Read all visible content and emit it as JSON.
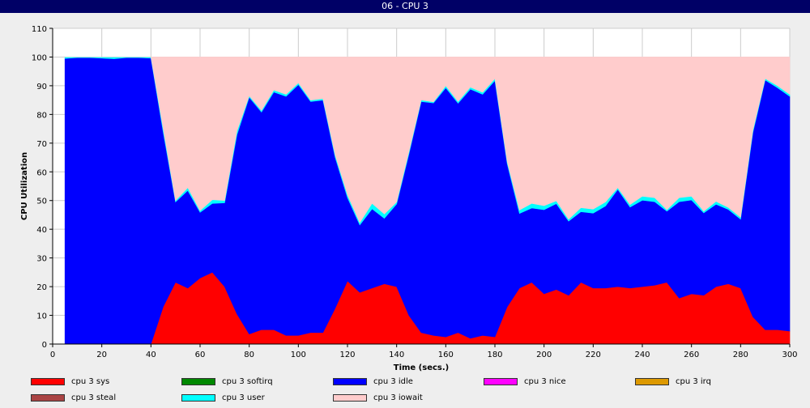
{
  "window": {
    "title": "06 - CPU 3"
  },
  "chart_data": {
    "type": "area",
    "stacked": true,
    "xlabel": "Time (secs.)",
    "ylabel": "CPU Utilization",
    "xlim": [
      0,
      300
    ],
    "ylim": [
      0,
      110
    ],
    "xticks": [
      0,
      20,
      40,
      60,
      80,
      100,
      120,
      140,
      160,
      180,
      200,
      220,
      240,
      260,
      280,
      300
    ],
    "yticks": [
      0,
      10,
      20,
      30,
      40,
      50,
      60,
      70,
      80,
      90,
      100,
      110
    ],
    "grid": true,
    "legend_position": "bottom",
    "x": [
      5,
      10,
      15,
      20,
      25,
      30,
      35,
      40,
      45,
      50,
      55,
      60,
      65,
      70,
      75,
      80,
      85,
      90,
      95,
      100,
      105,
      110,
      115,
      120,
      125,
      130,
      135,
      140,
      145,
      150,
      155,
      160,
      165,
      170,
      175,
      180,
      185,
      190,
      195,
      200,
      205,
      210,
      215,
      220,
      225,
      230,
      235,
      240,
      245,
      250,
      255,
      260,
      265,
      270,
      275,
      280,
      285,
      290,
      295,
      300
    ],
    "series": [
      {
        "name": "cpu 3 sys",
        "color": "#ff0000",
        "values": [
          0,
          0,
          0,
          0,
          0,
          0,
          0,
          0,
          13,
          21.5,
          19.5,
          23,
          25,
          20,
          10.5,
          3.5,
          5,
          5,
          3,
          3,
          4,
          4,
          12.5,
          22,
          18,
          19.5,
          21,
          20,
          10,
          4,
          3,
          2.5,
          4,
          2,
          3,
          2.5,
          13,
          19.5,
          21.5,
          17.5,
          19,
          17,
          21.5,
          19.5,
          19.5,
          20,
          19.5,
          20,
          20.5,
          21.5,
          16,
          17.5,
          17,
          20,
          21,
          19.5,
          9.5,
          5,
          5,
          4.5
        ]
      },
      {
        "name": "cpu 3 softirq",
        "color": "#008800",
        "values": [
          0,
          0,
          0,
          0,
          0,
          0,
          0,
          0,
          0,
          0,
          0,
          0,
          0,
          0,
          0,
          0,
          0,
          0,
          0,
          0,
          0,
          0,
          0,
          0,
          0,
          0,
          0,
          0,
          0,
          0,
          0,
          0,
          0,
          0,
          0,
          0,
          0,
          0,
          0,
          0,
          0,
          0,
          0,
          0,
          0,
          0,
          0,
          0,
          0,
          0,
          0,
          0,
          0,
          0,
          0,
          0,
          0,
          0,
          0,
          0
        ]
      },
      {
        "name": "cpu 3 idle",
        "color": "#0000ff",
        "values": [
          99.5,
          99.8,
          99.8,
          99.6,
          99.4,
          99.8,
          99.8,
          99.6,
          60.8,
          28,
          34,
          22.9,
          24,
          29.2,
          62.4,
          82.5,
          75.8,
          82.8,
          83.3,
          87.4,
          80.5,
          81,
          52.5,
          29,
          23.5,
          27.6,
          22.8,
          28.8,
          56.2,
          80.5,
          81,
          86.8,
          79.9,
          86.8,
          84,
          89.3,
          49.8,
          26,
          25.9,
          29.3,
          29.9,
          25.8,
          24.6,
          26.1,
          28.6,
          33.9,
          28.2,
          30.1,
          29.1,
          24.8,
          33.6,
          32.7,
          28.7,
          28.7,
          25.9,
          24,
          64.2,
          87,
          84.3,
          81.8
        ]
      },
      {
        "name": "cpu 3 nice",
        "color": "#ff00ff",
        "values": [
          0,
          0,
          0,
          0,
          0,
          0,
          0,
          0,
          0,
          0,
          0,
          0,
          0,
          0,
          0,
          0,
          0,
          0,
          0,
          0,
          0,
          0,
          0,
          0,
          0,
          0,
          0,
          0,
          0,
          0,
          0,
          0,
          0,
          0,
          0,
          0,
          0,
          0,
          0,
          0,
          0,
          0,
          0,
          0,
          0,
          0,
          0,
          0,
          0,
          0,
          0,
          0,
          0,
          0,
          0,
          0,
          0,
          0,
          0,
          0
        ]
      },
      {
        "name": "cpu 3 irq",
        "color": "#dd9900",
        "values": [
          0,
          0,
          0,
          0,
          0,
          0,
          0,
          0,
          0,
          0,
          0,
          0,
          0,
          0,
          0,
          0,
          0,
          0,
          0,
          0,
          0,
          0,
          0,
          0,
          0,
          0,
          0,
          0,
          0,
          0,
          0,
          0,
          0,
          0,
          0,
          0,
          0,
          0,
          0,
          0,
          0,
          0,
          0,
          0,
          0,
          0,
          0,
          0,
          0,
          0,
          0,
          0,
          0,
          0,
          0,
          0,
          0,
          0,
          0,
          0
        ]
      },
      {
        "name": "cpu 3 steal",
        "color": "#aa4444",
        "values": [
          0,
          0,
          0,
          0,
          0,
          0,
          0,
          0,
          0,
          0,
          0,
          0,
          0,
          0,
          0,
          0,
          0,
          0,
          0,
          0,
          0,
          0,
          0,
          0,
          0,
          0,
          0,
          0,
          0,
          0,
          0,
          0,
          0,
          0,
          0,
          0,
          0,
          0,
          0,
          0,
          0,
          0,
          0,
          0,
          0,
          0,
          0,
          0,
          0,
          0,
          0,
          0,
          0,
          0,
          0,
          0,
          0,
          0,
          0,
          0
        ]
      },
      {
        "name": "cpu 3 user",
        "color": "#00ffff",
        "values": [
          0.5,
          0.2,
          0.2,
          0.4,
          0.6,
          0.2,
          0.2,
          0.4,
          1.2,
          0.5,
          1,
          0.6,
          1.3,
          0.8,
          1.3,
          0.5,
          0.6,
          0.7,
          0.7,
          0.6,
          0.5,
          0.5,
          0.8,
          1,
          0.8,
          1.9,
          1.5,
          0.7,
          0.8,
          0.5,
          0.4,
          0.7,
          0.6,
          0.7,
          0.7,
          0.7,
          0.7,
          1.2,
          1.6,
          1.4,
          1,
          0.7,
          1.4,
          1.4,
          1.4,
          0.6,
          0.9,
          1.4,
          1.4,
          0.5,
          1.4,
          1.3,
          0.6,
          1,
          0.7,
          0.7,
          0.8,
          0.5,
          0.7,
          0.7
        ]
      },
      {
        "name": "cpu 3 iowait",
        "color": "#ffcccc",
        "values": [
          0,
          0,
          0,
          0,
          0,
          0,
          0,
          0,
          25,
          50,
          45.5,
          53.5,
          49.7,
          50,
          25.8,
          13.5,
          18.6,
          11.5,
          13,
          9,
          15,
          14.5,
          34.2,
          48,
          57.7,
          51,
          54.7,
          50.5,
          33,
          15,
          15.6,
          10,
          15.5,
          10.5,
          12.3,
          7.5,
          36.5,
          53.3,
          51,
          51.8,
          50.1,
          56.5,
          52.5,
          53,
          50.5,
          45.5,
          51.4,
          48.5,
          49,
          53.2,
          49,
          48.5,
          53.7,
          50.3,
          52.4,
          55.8,
          25.5,
          7.5,
          10,
          13
        ]
      }
    ],
    "background": "#ffffff",
    "grid_color": "#cccccc"
  }
}
